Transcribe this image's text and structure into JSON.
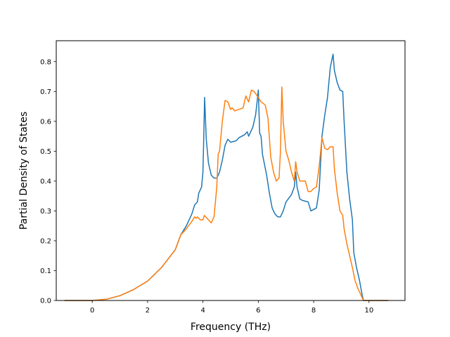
{
  "chart_data": {
    "type": "line",
    "xlabel": "Frequency (THz)",
    "ylabel": "Partial Density of States",
    "xlim": [
      -1.3,
      11.3
    ],
    "ylim": [
      0,
      0.87
    ],
    "xticks": [
      {
        "value": 0,
        "label": "0"
      },
      {
        "value": 2,
        "label": "2"
      },
      {
        "value": 4,
        "label": "4"
      },
      {
        "value": 6,
        "label": "6"
      },
      {
        "value": 8,
        "label": "8"
      },
      {
        "value": 10,
        "label": "10"
      }
    ],
    "yticks": [
      {
        "value": 0.0,
        "label": "0.0"
      },
      {
        "value": 0.1,
        "label": "0.1"
      },
      {
        "value": 0.2,
        "label": "0.2"
      },
      {
        "value": 0.3,
        "label": "0.3"
      },
      {
        "value": 0.4,
        "label": "0.4"
      },
      {
        "value": 0.5,
        "label": "0.5"
      },
      {
        "value": 0.6,
        "label": "0.6"
      },
      {
        "value": 0.7,
        "label": "0.7"
      },
      {
        "value": 0.8,
        "label": "0.8"
      }
    ],
    "grid": false,
    "series": [
      {
        "color": "#1f77b4",
        "points": [
          [
            -1.0,
            0.0
          ],
          [
            0.0,
            0.0
          ],
          [
            0.5,
            0.004
          ],
          [
            1.0,
            0.016
          ],
          [
            1.5,
            0.037
          ],
          [
            2.0,
            0.065
          ],
          [
            2.5,
            0.11
          ],
          [
            3.0,
            0.17
          ],
          [
            3.2,
            0.22
          ],
          [
            3.4,
            0.25
          ],
          [
            3.6,
            0.29
          ],
          [
            3.7,
            0.32
          ],
          [
            3.8,
            0.33
          ],
          [
            3.85,
            0.36
          ],
          [
            3.95,
            0.38
          ],
          [
            4.0,
            0.43
          ],
          [
            4.03,
            0.55
          ],
          [
            4.06,
            0.68
          ],
          [
            4.12,
            0.54
          ],
          [
            4.2,
            0.46
          ],
          [
            4.3,
            0.42
          ],
          [
            4.4,
            0.41
          ],
          [
            4.5,
            0.41
          ],
          [
            4.6,
            0.43
          ],
          [
            4.7,
            0.47
          ],
          [
            4.8,
            0.52
          ],
          [
            4.9,
            0.54
          ],
          [
            5.0,
            0.53
          ],
          [
            5.2,
            0.535
          ],
          [
            5.3,
            0.545
          ],
          [
            5.5,
            0.555
          ],
          [
            5.6,
            0.565
          ],
          [
            5.65,
            0.55
          ],
          [
            5.8,
            0.58
          ],
          [
            5.9,
            0.62
          ],
          [
            5.95,
            0.66
          ],
          [
            6.0,
            0.705
          ],
          [
            6.05,
            0.56
          ],
          [
            6.1,
            0.55
          ],
          [
            6.15,
            0.49
          ],
          [
            6.3,
            0.42
          ],
          [
            6.4,
            0.36
          ],
          [
            6.5,
            0.31
          ],
          [
            6.6,
            0.29
          ],
          [
            6.7,
            0.28
          ],
          [
            6.8,
            0.28
          ],
          [
            6.9,
            0.3
          ],
          [
            7.0,
            0.33
          ],
          [
            7.2,
            0.355
          ],
          [
            7.3,
            0.38
          ],
          [
            7.35,
            0.43
          ],
          [
            7.4,
            0.38
          ],
          [
            7.5,
            0.34
          ],
          [
            7.6,
            0.335
          ],
          [
            7.8,
            0.33
          ],
          [
            7.9,
            0.3
          ],
          [
            8.0,
            0.305
          ],
          [
            8.1,
            0.31
          ],
          [
            8.2,
            0.37
          ],
          [
            8.3,
            0.55
          ],
          [
            8.4,
            0.62
          ],
          [
            8.5,
            0.68
          ],
          [
            8.6,
            0.78
          ],
          [
            8.7,
            0.825
          ],
          [
            8.75,
            0.77
          ],
          [
            8.85,
            0.73
          ],
          [
            8.95,
            0.705
          ],
          [
            9.05,
            0.7
          ],
          [
            9.1,
            0.6
          ],
          [
            9.2,
            0.43
          ],
          [
            9.3,
            0.34
          ],
          [
            9.4,
            0.27
          ],
          [
            9.45,
            0.16
          ],
          [
            9.55,
            0.11
          ],
          [
            9.65,
            0.07
          ],
          [
            9.75,
            0.02
          ],
          [
            9.8,
            0.0
          ],
          [
            10.7,
            0.0
          ]
        ]
      },
      {
        "color": "#ff7f0e",
        "points": [
          [
            -1.0,
            0.0
          ],
          [
            0.0,
            0.0
          ],
          [
            0.5,
            0.004
          ],
          [
            1.0,
            0.016
          ],
          [
            1.5,
            0.037
          ],
          [
            2.0,
            0.065
          ],
          [
            2.5,
            0.11
          ],
          [
            3.0,
            0.17
          ],
          [
            3.2,
            0.22
          ],
          [
            3.4,
            0.24
          ],
          [
            3.6,
            0.265
          ],
          [
            3.7,
            0.28
          ],
          [
            3.75,
            0.275
          ],
          [
            3.8,
            0.28
          ],
          [
            3.9,
            0.27
          ],
          [
            4.0,
            0.27
          ],
          [
            4.05,
            0.285
          ],
          [
            4.2,
            0.27
          ],
          [
            4.3,
            0.26
          ],
          [
            4.4,
            0.28
          ],
          [
            4.5,
            0.38
          ],
          [
            4.55,
            0.49
          ],
          [
            4.6,
            0.5
          ],
          [
            4.7,
            0.6
          ],
          [
            4.8,
            0.67
          ],
          [
            4.9,
            0.665
          ],
          [
            5.0,
            0.64
          ],
          [
            5.05,
            0.645
          ],
          [
            5.15,
            0.635
          ],
          [
            5.3,
            0.64
          ],
          [
            5.45,
            0.645
          ],
          [
            5.55,
            0.685
          ],
          [
            5.65,
            0.665
          ],
          [
            5.75,
            0.705
          ],
          [
            5.85,
            0.7
          ],
          [
            6.0,
            0.68
          ],
          [
            6.1,
            0.665
          ],
          [
            6.25,
            0.655
          ],
          [
            6.35,
            0.61
          ],
          [
            6.45,
            0.48
          ],
          [
            6.55,
            0.43
          ],
          [
            6.65,
            0.4
          ],
          [
            6.75,
            0.41
          ],
          [
            6.8,
            0.5
          ],
          [
            6.85,
            0.715
          ],
          [
            6.9,
            0.6
          ],
          [
            7.0,
            0.5
          ],
          [
            7.1,
            0.47
          ],
          [
            7.2,
            0.43
          ],
          [
            7.3,
            0.4
          ],
          [
            7.35,
            0.465
          ],
          [
            7.4,
            0.43
          ],
          [
            7.5,
            0.4
          ],
          [
            7.6,
            0.4
          ],
          [
            7.7,
            0.4
          ],
          [
            7.8,
            0.365
          ],
          [
            7.9,
            0.365
          ],
          [
            8.0,
            0.375
          ],
          [
            8.1,
            0.38
          ],
          [
            8.2,
            0.45
          ],
          [
            8.3,
            0.545
          ],
          [
            8.4,
            0.51
          ],
          [
            8.5,
            0.505
          ],
          [
            8.6,
            0.515
          ],
          [
            8.7,
            0.515
          ],
          [
            8.75,
            0.44
          ],
          [
            8.85,
            0.36
          ],
          [
            8.95,
            0.3
          ],
          [
            9.05,
            0.285
          ],
          [
            9.1,
            0.24
          ],
          [
            9.2,
            0.19
          ],
          [
            9.3,
            0.15
          ],
          [
            9.4,
            0.11
          ],
          [
            9.5,
            0.065
          ],
          [
            9.6,
            0.04
          ],
          [
            9.7,
            0.02
          ],
          [
            9.8,
            0.0
          ],
          [
            10.7,
            0.0
          ]
        ]
      }
    ]
  }
}
